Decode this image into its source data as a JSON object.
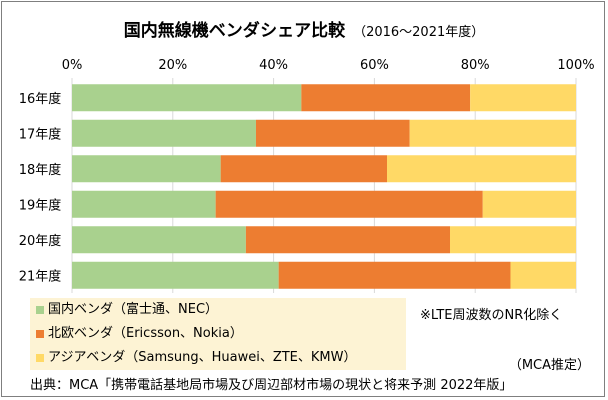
{
  "title": "国内無線機ベンダシェア比較",
  "subtitle": "（2016～2021年度）",
  "chart_data": {
    "type": "bar",
    "orientation": "horizontal",
    "stacked": true,
    "title": "国内無線機ベンダシェア比較",
    "categories": [
      "16年度",
      "17年度",
      "18年度",
      "19年度",
      "20年度",
      "21年度"
    ],
    "x_ticks": [
      "0%",
      "20%",
      "40%",
      "60%",
      "80%",
      "100%"
    ],
    "xlim": [
      0,
      100
    ],
    "grid": true,
    "series": [
      {
        "name": "国内ベンダ（富士通、NEC）",
        "color": "#a9d18e",
        "values": [
          45.5,
          36.5,
          29.5,
          28.5,
          34.5,
          41
        ]
      },
      {
        "name": "北欧ベンダ（Ericsson、Nokia）",
        "color": "#ed7d31",
        "values": [
          33.5,
          30.5,
          33,
          53,
          40.5,
          46
        ]
      },
      {
        "name": "アジアベンダ（Samsung、Huawei、ZTE、KMW）",
        "color": "#ffd966",
        "values": [
          21,
          33,
          37.5,
          18.5,
          25,
          13
        ]
      }
    ]
  },
  "note": "※LTE周波数のNR化除く",
  "estimate": "（MCA推定）",
  "source": "出典：MCA「携帯電話基地局市場及び周辺部材市場の現状と将来予測 2022年版」"
}
